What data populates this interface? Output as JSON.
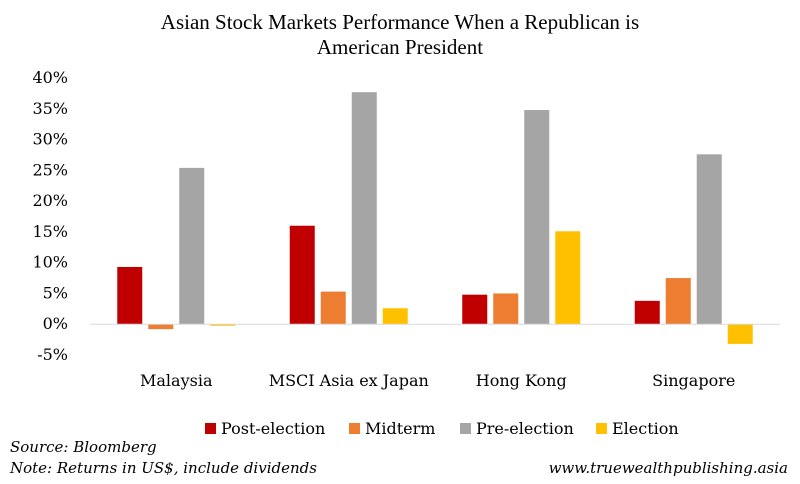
{
  "chart_data": {
    "type": "bar",
    "title_lines": [
      "Asian Stock Markets Performance When a Republican is",
      "American President"
    ],
    "categories": [
      "Malaysia",
      "MSCI Asia ex Japan",
      "Hong Kong",
      "Singapore"
    ],
    "series": [
      {
        "name": "Post-election",
        "color": "#c00000",
        "values": [
          9.3,
          16.0,
          4.8,
          3.8
        ]
      },
      {
        "name": "Midterm",
        "color": "#ed7d31",
        "values": [
          -0.8,
          5.3,
          5.0,
          7.5
        ]
      },
      {
        "name": "Pre-election",
        "color": "#a5a5a5",
        "values": [
          25.4,
          37.7,
          34.8,
          27.6
        ]
      },
      {
        "name": "Election",
        "color": "#ffc000",
        "values": [
          -0.2,
          2.6,
          15.1,
          -3.2
        ]
      }
    ],
    "ylim": [
      -5,
      40
    ],
    "yticks": [
      -5,
      0,
      5,
      10,
      15,
      20,
      25,
      30,
      35,
      40
    ],
    "ytick_labels": [
      "-5%",
      "0%",
      "5%",
      "10%",
      "15%",
      "20%",
      "25%",
      "30%",
      "35%",
      "40%"
    ],
    "xlabel": "",
    "ylabel": "",
    "legend_position": "bottom",
    "grid": false
  },
  "footer": {
    "source": "Source: Bloomberg",
    "note": "Note: Returns in US$, include dividends",
    "website": "www.truewealthpublishing.asia"
  }
}
